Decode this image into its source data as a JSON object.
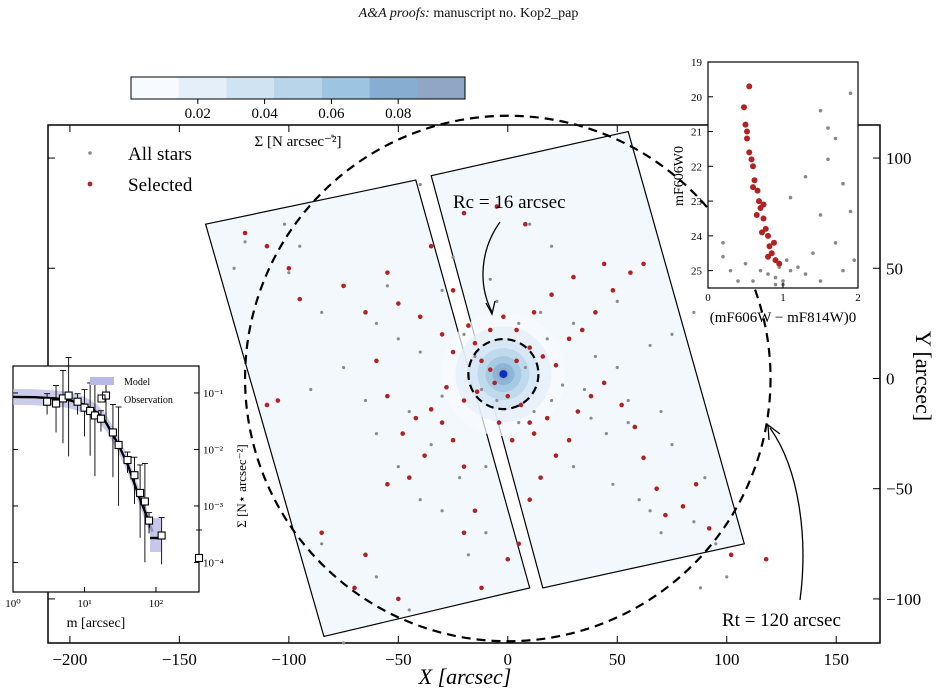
{
  "header": {
    "journal": "A&A proofs:",
    "manuscript": "manuscript no. Kop2_pap"
  },
  "colorbar": {
    "ticks": [
      "0.02",
      "0.04",
      "0.06",
      "0.08"
    ],
    "tick_values": [
      0.02,
      0.04,
      0.06,
      0.08
    ],
    "range": [
      0,
      0.1
    ],
    "label": "Σ [N arcsec⁻²]",
    "colors": [
      "#f7fbff",
      "#e4eff9",
      "#d0e3f3",
      "#b8d5ea",
      "#9dc4e0",
      "#86aed1",
      "#8fa6c4"
    ]
  },
  "main_chart": {
    "xlabel": "X [arcsec]",
    "ylabel": "Y [arcsec]",
    "xlim": [
      -210,
      170
    ],
    "ylim": [
      -120,
      115
    ],
    "xticks": [
      "−200",
      "−150",
      "−100",
      "−50",
      "0",
      "50",
      "100",
      "150"
    ],
    "xtick_values": [
      -200,
      -150,
      -100,
      -50,
      0,
      50,
      100,
      150
    ],
    "yticks": [
      "100",
      "50",
      "0",
      "−50",
      "−100"
    ],
    "ytick_values": [
      100,
      50,
      0,
      -50,
      -100
    ],
    "legend": {
      "all": "All stars",
      "selected": "Selected"
    },
    "core_label": "Rc = 16 arcsec",
    "tidal_label": "Rt = 120 arcsec",
    "core_radius": 16,
    "tidal_radius": 120,
    "center": [
      -2,
      2
    ],
    "field_left": [
      [
        -138,
        70
      ],
      [
        -42,
        90
      ],
      [
        10,
        -95
      ],
      [
        -84,
        -117
      ]
    ],
    "field_right": [
      [
        -35,
        92
      ],
      [
        55,
        112
      ],
      [
        108,
        -75
      ],
      [
        16,
        -95
      ]
    ],
    "colors": {
      "all": "#8c8c8c",
      "selected": "#b22222",
      "center": "#0b2fb8",
      "field_fill": "#f3f8fd"
    }
  },
  "chart_data": [
    {
      "type": "scatter",
      "title": "",
      "xlabel": "X [arcsec]",
      "ylabel": "Y [arcsec]",
      "series": [
        {
          "name": "All stars",
          "points": [
            [
              -120,
              62
            ],
            [
              -125,
              50
            ],
            [
              -100,
              48
            ],
            [
              -55,
              42
            ],
            [
              -30,
              40
            ],
            [
              -85,
              30
            ],
            [
              -60,
              25
            ],
            [
              -50,
              18
            ],
            [
              -40,
              12
            ],
            [
              -15,
              10
            ],
            [
              -75,
              5
            ],
            [
              -30,
              -8
            ],
            [
              -45,
              -15
            ],
            [
              -60,
              -25
            ],
            [
              -35,
              -30
            ],
            [
              -22,
              -45
            ],
            [
              -40,
              -55
            ],
            [
              -30,
              -60
            ],
            [
              -10,
              -70
            ],
            [
              -18,
              -80
            ],
            [
              -85,
              -75
            ],
            [
              -60,
              -90
            ],
            [
              -75,
              -120
            ],
            [
              -45,
              -105
            ],
            [
              -10,
              -40
            ],
            [
              5,
              -20
            ],
            [
              12,
              -15
            ],
            [
              20,
              -10
            ],
            [
              35,
              -5
            ],
            [
              45,
              -25
            ],
            [
              55,
              -20
            ],
            [
              30,
              -40
            ],
            [
              48,
              -48
            ],
            [
              60,
              -55
            ],
            [
              65,
              -60
            ],
            [
              70,
              -70
            ],
            [
              85,
              -65
            ],
            [
              95,
              -75
            ],
            [
              90,
              -45
            ],
            [
              75,
              -30
            ],
            [
              70,
              -15
            ],
            [
              55,
              -10
            ],
            [
              40,
              10
            ],
            [
              50,
              5
            ],
            [
              65,
              15
            ],
            [
              75,
              20
            ],
            [
              85,
              30
            ],
            [
              50,
              35
            ],
            [
              30,
              25
            ],
            [
              15,
              30
            ],
            [
              5,
              25
            ],
            [
              -5,
              35
            ],
            [
              -25,
              55
            ],
            [
              -80,
              110
            ],
            [
              -40,
              88
            ],
            [
              10,
              70
            ],
            [
              20,
              60
            ],
            [
              -8,
              45
            ],
            [
              -20,
              20
            ],
            [
              -12,
              -5
            ],
            [
              -5,
              -10
            ],
            [
              8,
              5
            ],
            [
              18,
              18
            ],
            [
              25,
              -3
            ],
            [
              38,
              -18
            ],
            [
              -50,
              -40
            ],
            [
              -65,
              -10
            ],
            [
              -90,
              -5
            ],
            [
              100,
              -90
            ],
            [
              88,
              -95
            ],
            [
              -95,
              60
            ],
            [
              -102,
              70
            ]
          ]
        },
        {
          "name": "Selected",
          "points": [
            [
              -120,
              66
            ],
            [
              -110,
              60
            ],
            [
              -100,
              50
            ],
            [
              -95,
              36
            ],
            [
              -75,
              42
            ],
            [
              -55,
              48
            ],
            [
              -65,
              30
            ],
            [
              -50,
              34
            ],
            [
              -40,
              28
            ],
            [
              -30,
              20
            ],
            [
              -25,
              12
            ],
            [
              -15,
              16
            ],
            [
              -12,
              8
            ],
            [
              -8,
              4
            ],
            [
              -6,
              -2
            ],
            [
              -14,
              -6
            ],
            [
              -20,
              -10
            ],
            [
              -28,
              -4
            ],
            [
              -35,
              -14
            ],
            [
              -42,
              -18
            ],
            [
              -55,
              -8
            ],
            [
              -60,
              8
            ],
            [
              -105,
              -10
            ],
            [
              -110,
              -12
            ],
            [
              -45,
              -45
            ],
            [
              -38,
              -35
            ],
            [
              -25,
              -28
            ],
            [
              -20,
              -40
            ],
            [
              -15,
              -60
            ],
            [
              -20,
              -70
            ],
            [
              -55,
              -48
            ],
            [
              -65,
              -80
            ],
            [
              -85,
              -70
            ],
            [
              -70,
              -95
            ],
            [
              -50,
              -100
            ],
            [
              -12,
              -95
            ],
            [
              0,
              -82
            ],
            [
              5,
              -75
            ],
            [
              10,
              -55
            ],
            [
              15,
              -45
            ],
            [
              22,
              -35
            ],
            [
              28,
              -28
            ],
            [
              32,
              -15
            ],
            [
              38,
              -8
            ],
            [
              44,
              -2
            ],
            [
              52,
              -12
            ],
            [
              58,
              -22
            ],
            [
              62,
              -36
            ],
            [
              68,
              -50
            ],
            [
              72,
              -62
            ],
            [
              80,
              -58
            ],
            [
              86,
              -48
            ],
            [
              92,
              -68
            ],
            [
              102,
              -80
            ],
            [
              118,
              -82
            ],
            [
              12,
              -25
            ],
            [
              6,
              -12
            ],
            [
              0,
              -8
            ],
            [
              4,
              8
            ],
            [
              10,
              14
            ],
            [
              16,
              10
            ],
            [
              22,
              6
            ],
            [
              28,
              18
            ],
            [
              34,
              22
            ],
            [
              40,
              30
            ],
            [
              48,
              40
            ],
            [
              56,
              48
            ],
            [
              62,
              52
            ],
            [
              44,
              52
            ],
            [
              30,
              46
            ],
            [
              20,
              38
            ],
            [
              12,
              30
            ],
            [
              4,
              22
            ],
            [
              -2,
              28
            ],
            [
              -8,
              22
            ],
            [
              -18,
              24
            ],
            [
              -25,
              40
            ],
            [
              -35,
              60
            ],
            [
              -20,
              75
            ],
            [
              -5,
              78
            ],
            [
              8,
              70
            ],
            [
              2,
              -28
            ],
            [
              -4,
              -20
            ],
            [
              10,
              -20
            ],
            [
              18,
              -18
            ],
            [
              -30,
              -20
            ],
            [
              -48,
              -25
            ]
          ]
        }
      ]
    },
    {
      "type": "line",
      "title": "",
      "xlabel": "m [arcsec]",
      "ylabel": "Σ [N⋆ arcsec⁻²]",
      "log_x": true,
      "log_y": true,
      "xlim": [
        1,
        400
      ],
      "ylim": [
        3e-05,
        0.3
      ],
      "xticks": [
        "10⁰",
        "10¹",
        "10²"
      ],
      "yticks": [
        "10⁻¹",
        "10⁻²",
        "10⁻³",
        "10⁻⁴"
      ],
      "legend": [
        "Model",
        "Observation"
      ],
      "model_x": [
        1,
        2,
        4,
        6,
        10,
        15,
        20,
        30,
        40,
        50,
        60,
        70,
        80,
        90
      ],
      "model_y": [
        0.085,
        0.084,
        0.08,
        0.075,
        0.062,
        0.045,
        0.03,
        0.012,
        0.0055,
        0.0025,
        0.0013,
        0.0008,
        0.0005,
        0.00035
      ],
      "obs_x": [
        3,
        4,
        5,
        6,
        8,
        10,
        12,
        14,
        17,
        20,
        25,
        30,
        40,
        50,
        60,
        70,
        80,
        120,
        400
      ],
      "obs_y": [
        0.07,
        0.065,
        0.08,
        0.09,
        0.07,
        0.055,
        0.048,
        0.04,
        0.035,
        0.09,
        0.02,
        0.012,
        0.0065,
        0.0035,
        0.0017,
        0.0012,
        0.00055,
        0.0003,
        0.00012
      ]
    },
    {
      "type": "scatter",
      "title": "",
      "xlabel": "(mF606W − mF814W)0",
      "ylabel": "mF606W0",
      "xlim": [
        0,
        2
      ],
      "ylim": [
        25.5,
        19
      ],
      "xticks": [
        "0",
        "1",
        "2"
      ],
      "yticks": [
        "19",
        "20",
        "21",
        "22",
        "23",
        "24",
        "25"
      ],
      "series": [
        {
          "name": "All stars",
          "points": [
            [
              1.5,
              20.4
            ],
            [
              1.9,
              19.9
            ],
            [
              1.7,
              21.2
            ],
            [
              1.6,
              21.8
            ],
            [
              1.3,
              22.3
            ],
            [
              1.8,
              22.5
            ],
            [
              1.1,
              22.9
            ],
            [
              1.5,
              23.4
            ],
            [
              1.9,
              23.3
            ],
            [
              1.7,
              24.2
            ],
            [
              1.4,
              24.5
            ],
            [
              0.2,
              24.6
            ],
            [
              0.3,
              25.0
            ],
            [
              0.5,
              24.8
            ],
            [
              0.8,
              25.1
            ],
            [
              0.9,
              25.2
            ],
            [
              1.0,
              25.3
            ],
            [
              1.1,
              25.0
            ],
            [
              1.2,
              24.9
            ],
            [
              1.0,
              25.4
            ],
            [
              0.9,
              25.4
            ],
            [
              0.6,
              25.3
            ],
            [
              0.4,
              25.3
            ],
            [
              1.3,
              25.1
            ],
            [
              1.5,
              25.3
            ],
            [
              1.8,
              25.0
            ],
            [
              1.95,
              24.7
            ],
            [
              0.7,
              25.0
            ],
            [
              0.95,
              24.9
            ],
            [
              1.05,
              24.7
            ],
            [
              0.2,
              24.2
            ],
            [
              1.6,
              20.9
            ]
          ]
        },
        {
          "name": "Selected",
          "points": [
            [
              0.55,
              19.7
            ],
            [
              0.48,
              20.3
            ],
            [
              0.5,
              20.8
            ],
            [
              0.52,
              21.2
            ],
            [
              0.55,
              21.6
            ],
            [
              0.6,
              22.0
            ],
            [
              0.62,
              22.4
            ],
            [
              0.66,
              22.7
            ],
            [
              0.68,
              23.0
            ],
            [
              0.7,
              23.2
            ],
            [
              0.74,
              23.5
            ],
            [
              0.77,
              23.8
            ],
            [
              0.8,
              24.0
            ],
            [
              0.82,
              24.3
            ],
            [
              0.85,
              24.5
            ],
            [
              0.9,
              24.7
            ],
            [
              0.95,
              24.8
            ],
            [
              0.72,
              23.9
            ],
            [
              0.6,
              22.6
            ],
            [
              0.58,
              21.8
            ],
            [
              0.65,
              23.4
            ],
            [
              0.88,
              24.2
            ],
            [
              0.8,
              24.6
            ],
            [
              0.74,
              23.1
            ],
            [
              0.52,
              21.0
            ]
          ]
        }
      ]
    }
  ],
  "inset_density": {
    "xlabel": "m [arcsec]",
    "ylabel": "Σ [N⋆ arcsec⁻²]",
    "xticks": [
      "10⁰",
      "10¹",
      "10²"
    ],
    "yticks": [
      "10⁻¹",
      "10⁻²",
      "10⁻³",
      "10⁻⁴"
    ],
    "legend": {
      "model": "Model",
      "observation": "Observation"
    },
    "colors": {
      "model_band": "#b9b9e6",
      "model_line": "#000000"
    }
  },
  "inset_cmd": {
    "xlabel": "(mF606W − mF814W)0",
    "ylabel": "mF606W0",
    "xticks": [
      "0",
      "1",
      "2"
    ],
    "yticks": [
      "19",
      "20",
      "21",
      "22",
      "23",
      "24",
      "25"
    ]
  }
}
